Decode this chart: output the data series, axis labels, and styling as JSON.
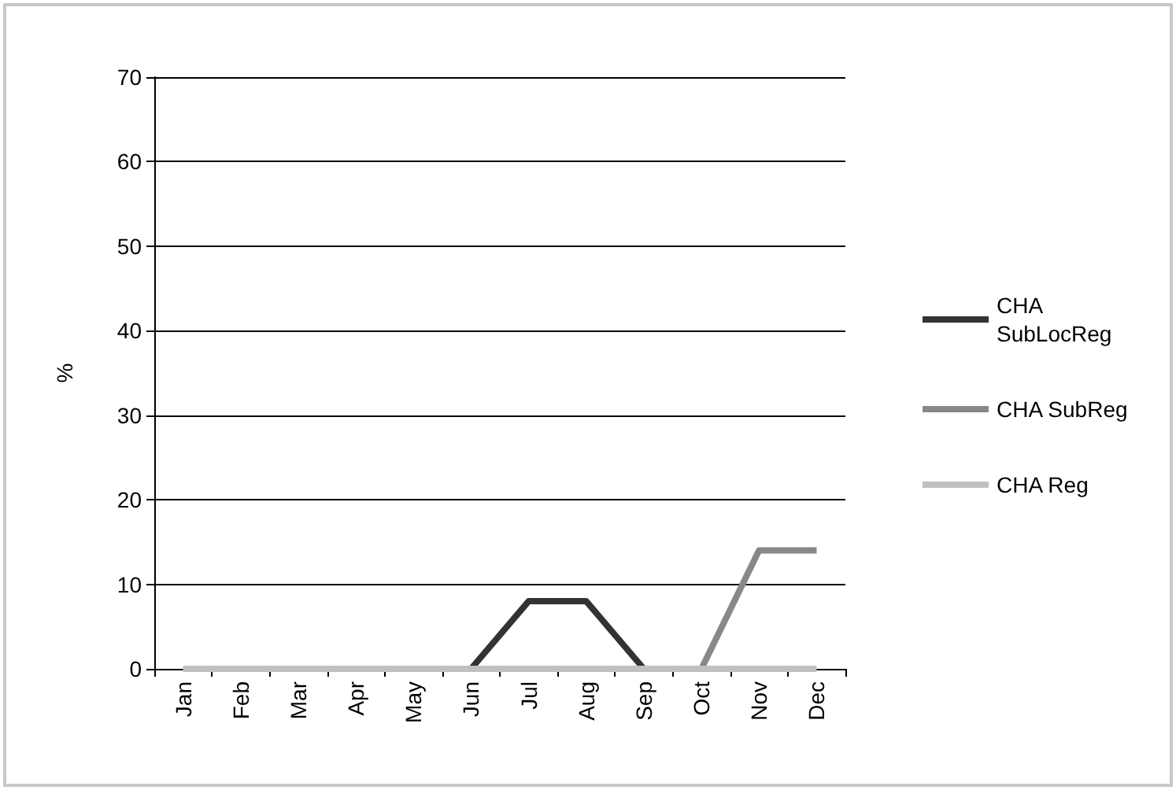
{
  "chart_data": {
    "type": "line",
    "ylabel": "%",
    "categories": [
      "Jan",
      "Feb",
      "Mar",
      "Apr",
      "May",
      "Jun",
      "Jul",
      "Aug",
      "Sep",
      "Oct",
      "Nov",
      "Dec"
    ],
    "series": [
      {
        "name": "CHA SubLocReg",
        "color": "#333333",
        "values": [
          null,
          null,
          null,
          null,
          null,
          0,
          8,
          8,
          0,
          null,
          null,
          null
        ]
      },
      {
        "name": "CHA SubReg",
        "color": "#888888",
        "values": [
          null,
          null,
          null,
          null,
          null,
          null,
          null,
          null,
          null,
          0,
          14,
          14
        ]
      },
      {
        "name": "CHA Reg",
        "color": "#c0c0c0",
        "values": [
          0,
          0,
          0,
          0,
          0,
          0,
          0,
          0,
          0,
          0,
          0,
          0
        ]
      }
    ],
    "ylim": [
      0,
      70
    ],
    "yticks": [
      0,
      10,
      20,
      30,
      40,
      50,
      60,
      70
    ],
    "grid": "y",
    "legend": "right",
    "marker": "none",
    "line_style": "solid"
  }
}
